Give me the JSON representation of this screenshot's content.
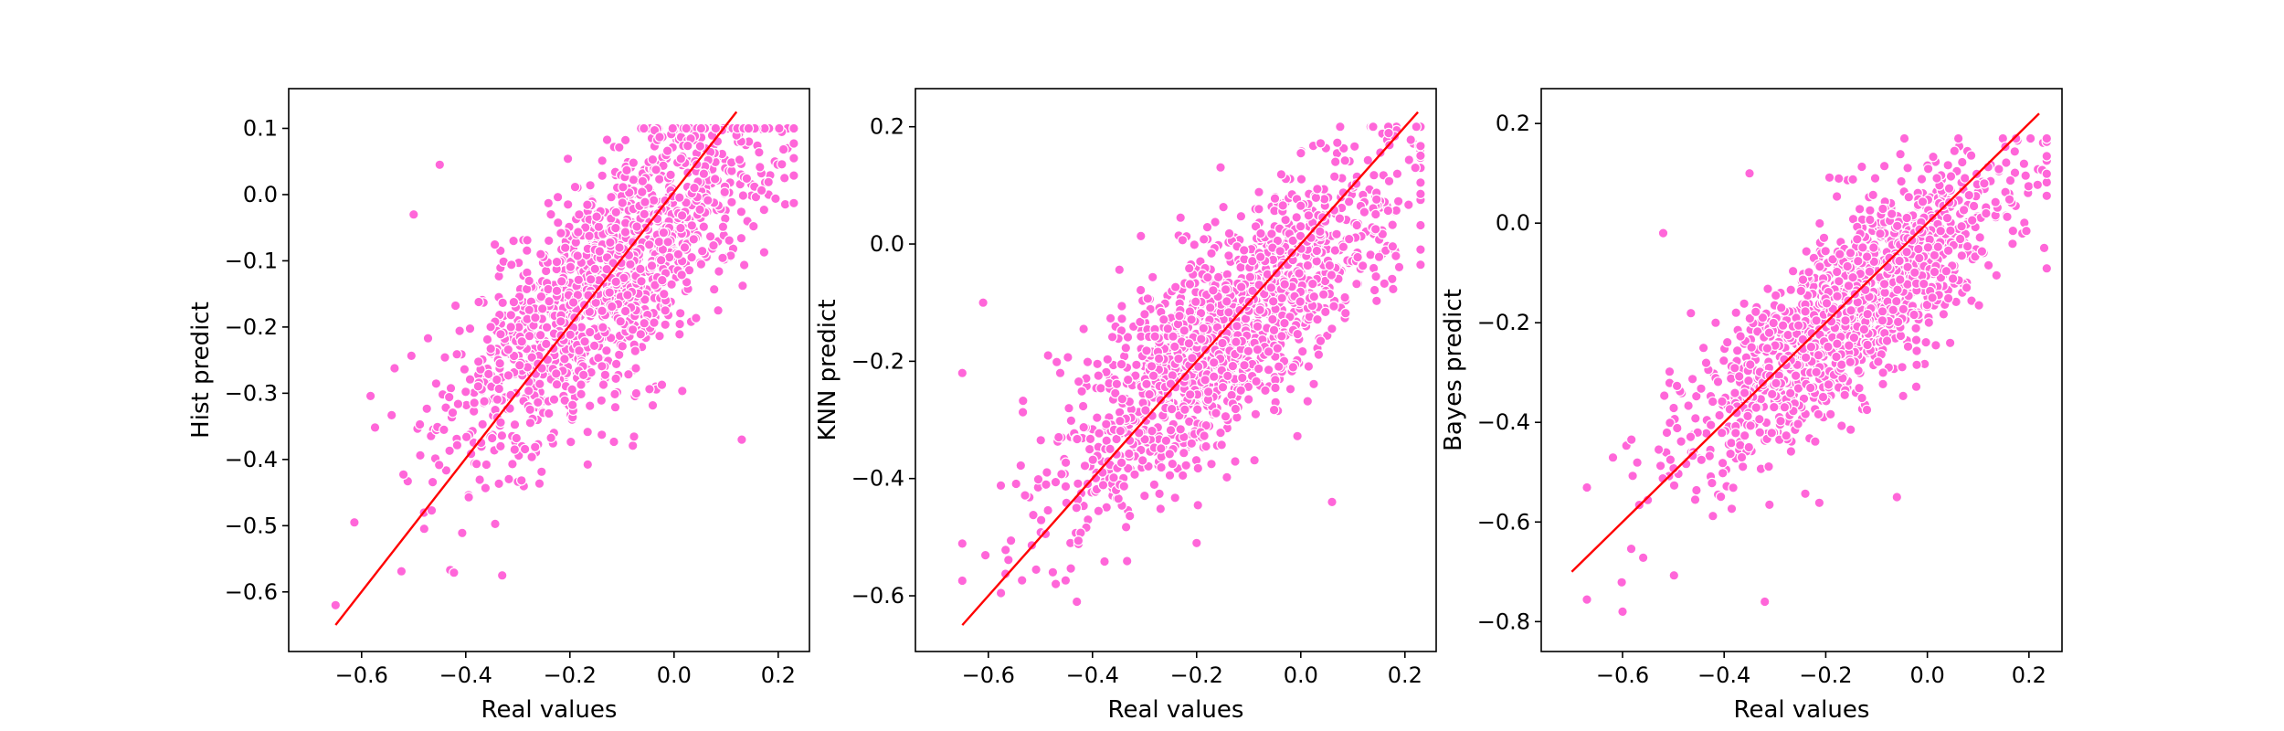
{
  "colors": {
    "points": "#ff66d9",
    "diagonal": "#ff0000",
    "background": "#ffffff"
  },
  "chart_data": [
    {
      "type": "scatter",
      "xlabel": "Real values",
      "ylabel": "Hist predict",
      "xlim": [
        -0.74,
        0.26
      ],
      "ylim": [
        -0.69,
        0.16
      ],
      "xticks": [
        -0.6,
        -0.4,
        -0.2,
        0.0,
        0.2
      ],
      "yticks": [
        -0.6,
        -0.5,
        -0.4,
        -0.3,
        -0.2,
        -0.1,
        0.0,
        0.1
      ],
      "tick_decimals": 1,
      "diagonal": [
        [
          -0.65,
          -0.65
        ],
        [
          0.12,
          0.125
        ]
      ],
      "point_count": 1400,
      "point_model": {
        "intercept": -0.04,
        "slope": 0.68,
        "x_spread": 0.155,
        "x_center": -0.12,
        "y_noise": 0.085,
        "y_clip": [
          -0.63,
          0.1
        ]
      },
      "sample_points": [
        [
          -0.65,
          -0.62
        ],
        [
          -0.45,
          0.045
        ],
        [
          0.23,
          0.055
        ],
        [
          0.13,
          -0.37
        ],
        [
          -0.33,
          -0.575
        ],
        [
          -0.5,
          -0.03
        ]
      ]
    },
    {
      "type": "scatter",
      "xlabel": "Real values",
      "ylabel": "KNN predict",
      "xlim": [
        -0.74,
        0.26
      ],
      "ylim": [
        -0.695,
        0.265
      ],
      "xticks": [
        -0.6,
        -0.4,
        -0.2,
        0.0,
        0.2
      ],
      "yticks": [
        -0.6,
        -0.4,
        -0.2,
        0.0,
        0.2
      ],
      "tick_decimals": 1,
      "diagonal": [
        [
          -0.65,
          -0.65
        ],
        [
          0.225,
          0.225
        ]
      ],
      "point_count": 1400,
      "point_model": {
        "intercept": -0.05,
        "slope": 0.72,
        "x_spread": 0.16,
        "x_center": -0.14,
        "y_noise": 0.09,
        "y_clip": [
          -0.62,
          0.2
        ]
      },
      "sample_points": [
        [
          -0.65,
          -0.22
        ],
        [
          -0.61,
          -0.1
        ],
        [
          0.22,
          0.13
        ],
        [
          -0.2,
          -0.51
        ],
        [
          -0.43,
          -0.61
        ],
        [
          0.06,
          -0.44
        ]
      ]
    },
    {
      "type": "scatter",
      "xlabel": "Real values",
      "ylabel": "Bayes predict",
      "xlim": [
        -0.76,
        0.265
      ],
      "ylim": [
        -0.86,
        0.27
      ],
      "xticks": [
        -0.6,
        -0.4,
        -0.2,
        0.0,
        0.2
      ],
      "yticks": [
        -0.8,
        -0.6,
        -0.4,
        -0.2,
        0.0,
        0.2
      ],
      "tick_decimals": 1,
      "diagonal": [
        [
          -0.7,
          -0.7
        ],
        [
          0.22,
          0.22
        ]
      ],
      "point_count": 1400,
      "point_model": {
        "intercept": -0.06,
        "slope": 0.78,
        "x_spread": 0.16,
        "x_center": -0.15,
        "y_noise": 0.09,
        "y_clip": [
          -0.78,
          0.17
        ]
      },
      "sample_points": [
        [
          -0.6,
          -0.78
        ],
        [
          -0.32,
          -0.76
        ],
        [
          0.23,
          -0.05
        ],
        [
          -0.06,
          -0.55
        ],
        [
          -0.35,
          0.1
        ],
        [
          -0.52,
          -0.02
        ]
      ]
    }
  ]
}
